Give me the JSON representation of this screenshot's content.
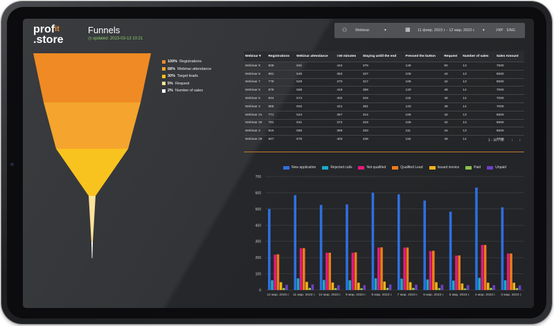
{
  "header": {
    "logo_top": "prof",
    "logo_accent": "it",
    "logo_bottom": ".store",
    "title": "Funnels",
    "updated": "updated: 2023-03-13 10:21"
  },
  "filters": {
    "webinar_label": "Webinar",
    "webinar_chevron": "▾",
    "date_range": "11 февр. 2023 г. - 12 мар. 2023 г.",
    "date_chevron": "▾",
    "lang_ukr": "УКР",
    "lang_eng": "ENG"
  },
  "funnel": {
    "levels": [
      {
        "pct": "100%",
        "label": "Registrations",
        "value": 100,
        "color": "#f08a24"
      },
      {
        "pct": "68%",
        "label": "Webinar attendance",
        "value": 68,
        "color": "#f5a42e"
      },
      {
        "pct": "30%",
        "label": "Target leads",
        "value": 30,
        "color": "#f9c31f"
      },
      {
        "pct": "5%",
        "label": "Request",
        "value": 5,
        "color": "#fce29a"
      },
      {
        "pct": "2%",
        "label": "Number of sales",
        "value": 2,
        "color": "#ffffff"
      }
    ]
  },
  "table": {
    "headers": [
      "Webinar ▾",
      "Registrations",
      "Webinar attendance",
      ">30 minutes",
      "Staying untill the end",
      "Pressed the button",
      "Request",
      "Number of sales",
      "Sales Amount"
    ],
    "rows": [
      [
        "Webinar 9",
        "928",
        "631",
        "442",
        "379",
        "126",
        "50",
        "13",
        "7500"
      ],
      [
        "Webinar 8",
        "891",
        "545",
        "382",
        "327",
        "109",
        "44",
        "13",
        "6500"
      ],
      [
        "Webinar 7",
        "778",
        "529",
        "370",
        "317",
        "106",
        "42",
        "13",
        "6500"
      ],
      [
        "Webinar 6",
        "879",
        "598",
        "419",
        "359",
        "120",
        "48",
        "14",
        "7000"
      ],
      [
        "Webinar 5",
        "844",
        "574",
        "402",
        "344",
        "115",
        "46",
        "14",
        "7000"
      ],
      [
        "Webinar 4",
        "865",
        "602",
        "421",
        "361",
        "120",
        "48",
        "14",
        "7000"
      ],
      [
        "Webinar 31",
        "771",
        "524",
        "367",
        "314",
        "105",
        "42",
        "13",
        "6500"
      ],
      [
        "Webinar 30",
        "781",
        "531",
        "372",
        "319",
        "106",
        "42",
        "13",
        "6500"
      ],
      [
        "Webinar 3",
        "816",
        "555",
        "389",
        "333",
        "111",
        "44",
        "13",
        "6500"
      ],
      [
        "Webinar 29",
        "847",
        "576",
        "403",
        "346",
        "115",
        "46",
        "14",
        "7000"
      ]
    ],
    "pager": "1 - 30 / 30",
    "prev": "‹",
    "next": "›"
  },
  "chart_data": {
    "type": "bar",
    "ylim": [
      0,
      700
    ],
    "yticks": [
      "0",
      "100",
      "200",
      "300",
      "400",
      "500",
      "600",
      "700"
    ],
    "categories": [
      "12 мар. 2023 г.",
      "11 мар. 2023 г.",
      "10 мар. 2023 г.",
      "9 мар. 2023 г.",
      "8 мар. 2023 г.",
      "7 мар. 2023 г.",
      "6 мар. 2023 г.",
      "5 мар. 2023 г.",
      "4 мар. 2023 г.",
      "3 мар. 2023 г."
    ],
    "series": [
      {
        "name": "New application",
        "color": "#2f6fe0",
        "values": [
          500,
          585,
          525,
          528,
          600,
          590,
          552,
          483,
          632,
          510
        ]
      },
      {
        "name": "Rejected calls",
        "color": "#18aac9",
        "values": [
          60,
          72,
          62,
          60,
          72,
          70,
          65,
          58,
          75,
          60
        ]
      },
      {
        "name": "Not qualified",
        "color": "#e5197e",
        "values": [
          218,
          258,
          230,
          230,
          262,
          262,
          240,
          212,
          278,
          225
        ]
      },
      {
        "name": "Qualified Lead",
        "color": "#f07b1a",
        "values": [
          220,
          258,
          230,
          232,
          263,
          262,
          242,
          213,
          278,
          225
        ]
      },
      {
        "name": "Issued invoice",
        "color": "#f3b21b",
        "values": [
          48,
          50,
          46,
          45,
          52,
          48,
          48,
          40,
          45,
          45
        ]
      },
      {
        "name": "Paid",
        "color": "#8bc34a",
        "values": [
          12,
          13,
          12,
          11,
          13,
          13,
          12,
          10,
          13,
          12
        ]
      },
      {
        "name": "Unpaid",
        "color": "#6d3fc9",
        "values": [
          32,
          34,
          30,
          30,
          34,
          33,
          32,
          30,
          30,
          28
        ]
      }
    ]
  }
}
